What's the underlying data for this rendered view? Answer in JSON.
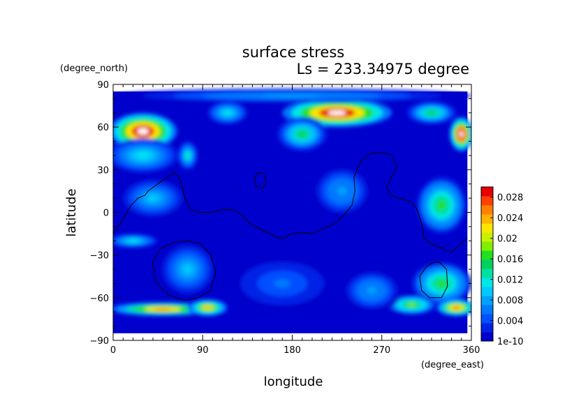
{
  "chart_data": {
    "type": "heatmap",
    "title": "surface stress",
    "subtitle": "Ls = 233.34975 degree",
    "xlabel": "longitude",
    "ylabel": "latitude",
    "x_unit": "(degree_east)",
    "y_unit": "(degree_north)",
    "xlim": [
      0,
      360
    ],
    "ylim": [
      -90,
      90
    ],
    "x_ticks": [
      "0",
      "90",
      "180",
      "270",
      "360"
    ],
    "y_ticks": [
      "90",
      "60",
      "30",
      "0",
      "−30",
      "−60",
      "−90"
    ],
    "x_tick_values": [
      0,
      90,
      180,
      270,
      360
    ],
    "y_tick_values": [
      90,
      60,
      30,
      0,
      -30,
      -60,
      -90
    ],
    "data_lon_range": [
      0,
      356
    ],
    "data_lat_range": [
      -85,
      85
    ],
    "colorbar": {
      "labels": [
        "0.028",
        "0.024",
        "0.02",
        "0.016",
        "0.012",
        "0.008",
        "0.004",
        "1e-10"
      ],
      "values": [
        0.028,
        0.024,
        0.02,
        0.016,
        0.012,
        0.008,
        0.004,
        0.0
      ],
      "max_value": 0.03,
      "colors": [
        "#0000cc",
        "#0022e6",
        "#0050ff",
        "#0078ff",
        "#00a0ff",
        "#00c8ff",
        "#00e6e6",
        "#00e0a0",
        "#00d060",
        "#20e020",
        "#80f000",
        "#c8f000",
        "#ffe600",
        "#ffb400",
        "#ff8000",
        "#ff4000",
        "#e60000"
      ]
    },
    "stress_blobs": [
      {
        "lon": 30,
        "lat": 57,
        "rx": 34,
        "ry": 13,
        "value": 0.034
      },
      {
        "lon": 30,
        "lat": 40,
        "rx": 35,
        "ry": 12,
        "value": 0.012
      },
      {
        "lon": 75,
        "lat": 40,
        "rx": 10,
        "ry": 10,
        "value": 0.013
      },
      {
        "lon": 225,
        "lat": 70,
        "rx": 55,
        "ry": 10,
        "value": 0.034
      },
      {
        "lon": 190,
        "lat": 55,
        "rx": 25,
        "ry": 12,
        "value": 0.015
      },
      {
        "lon": 115,
        "lat": 70,
        "rx": 20,
        "ry": 8,
        "value": 0.012
      },
      {
        "lon": 320,
        "lat": 70,
        "rx": 25,
        "ry": 8,
        "value": 0.015
      },
      {
        "lon": 350,
        "lat": 55,
        "rx": 12,
        "ry": 12,
        "value": 0.035
      },
      {
        "lon": 40,
        "lat": 10,
        "rx": 35,
        "ry": 15,
        "value": 0.009
      },
      {
        "lon": 20,
        "lat": -20,
        "rx": 25,
        "ry": 5,
        "value": 0.012
      },
      {
        "lon": 330,
        "lat": 5,
        "rx": 25,
        "ry": 20,
        "value": 0.016
      },
      {
        "lon": 75,
        "lat": -40,
        "rx": 30,
        "ry": 20,
        "value": 0.009
      },
      {
        "lon": 230,
        "lat": 15,
        "rx": 30,
        "ry": 18,
        "value": 0.008
      },
      {
        "lon": 50,
        "lat": -68,
        "rx": 55,
        "ry": 5,
        "value": 0.026
      },
      {
        "lon": 95,
        "lat": -67,
        "rx": 20,
        "ry": 6,
        "value": 0.024
      },
      {
        "lon": 330,
        "lat": -50,
        "rx": 30,
        "ry": 15,
        "value": 0.016
      },
      {
        "lon": 345,
        "lat": -67,
        "rx": 20,
        "ry": 6,
        "value": 0.027
      },
      {
        "lon": 300,
        "lat": -65,
        "rx": 25,
        "ry": 7,
        "value": 0.018
      },
      {
        "lon": 260,
        "lat": -55,
        "rx": 30,
        "ry": 15,
        "value": 0.008
      },
      {
        "lon": 170,
        "lat": -50,
        "rx": 50,
        "ry": 18,
        "value": 0.006
      },
      {
        "lon": 180,
        "lat": 82,
        "rx": 180,
        "ry": 5,
        "value": 0.008
      }
    ],
    "topography_contours": [
      {
        "name": "northern-lowland-boundary",
        "points": [
          [
            0,
            -15
          ],
          [
            10,
            -5
          ],
          [
            18,
            5
          ],
          [
            25,
            10
          ],
          [
            32,
            12
          ],
          [
            35,
            15
          ],
          [
            45,
            20
          ],
          [
            55,
            25
          ],
          [
            62,
            28
          ],
          [
            68,
            22
          ],
          [
            72,
            10
          ],
          [
            78,
            2
          ],
          [
            85,
            0
          ],
          [
            100,
            0
          ],
          [
            110,
            2
          ],
          [
            120,
            2
          ],
          [
            130,
            -2
          ],
          [
            138,
            -8
          ],
          [
            148,
            -12
          ],
          [
            158,
            -15
          ],
          [
            166,
            -18
          ],
          [
            172,
            -18
          ],
          [
            180,
            -15
          ],
          [
            190,
            -14
          ],
          [
            200,
            -15
          ],
          [
            210,
            -12
          ],
          [
            222,
            -8
          ],
          [
            232,
            -2
          ],
          [
            240,
            5
          ],
          [
            243,
            15
          ],
          [
            242,
            25
          ],
          [
            248,
            35
          ],
          [
            255,
            40
          ],
          [
            262,
            42
          ],
          [
            272,
            42
          ],
          [
            280,
            40
          ],
          [
            285,
            32
          ],
          [
            280,
            25
          ],
          [
            275,
            18
          ],
          [
            278,
            12
          ],
          [
            288,
            10
          ],
          [
            298,
            8
          ],
          [
            305,
            3
          ],
          [
            310,
            -8
          ],
          [
            312,
            -18
          ],
          [
            320,
            -22
          ],
          [
            330,
            -25
          ],
          [
            340,
            -28
          ],
          [
            350,
            -22
          ],
          [
            356,
            -18
          ]
        ]
      },
      {
        "name": "tharsis-small-contour",
        "points": [
          [
            145,
            28
          ],
          [
            152,
            27
          ],
          [
            154,
            20
          ],
          [
            150,
            17
          ],
          [
            144,
            18
          ],
          [
            142,
            24
          ],
          [
            145,
            28
          ]
        ]
      },
      {
        "name": "hellas-contour",
        "points": [
          [
            75,
            -20
          ],
          [
            88,
            -22
          ],
          [
            98,
            -30
          ],
          [
            103,
            -42
          ],
          [
            98,
            -55
          ],
          [
            86,
            -60
          ],
          [
            72,
            -62
          ],
          [
            55,
            -58
          ],
          [
            42,
            -48
          ],
          [
            40,
            -35
          ],
          [
            48,
            -25
          ],
          [
            62,
            -21
          ],
          [
            75,
            -20
          ]
        ]
      },
      {
        "name": "argyre-contour",
        "points": [
          [
            328,
            -35
          ],
          [
            335,
            -40
          ],
          [
            336,
            -52
          ],
          [
            330,
            -60
          ],
          [
            318,
            -60
          ],
          [
            310,
            -55
          ],
          [
            308,
            -45
          ],
          [
            315,
            -38
          ],
          [
            322,
            -35
          ],
          [
            328,
            -35
          ]
        ]
      }
    ]
  }
}
